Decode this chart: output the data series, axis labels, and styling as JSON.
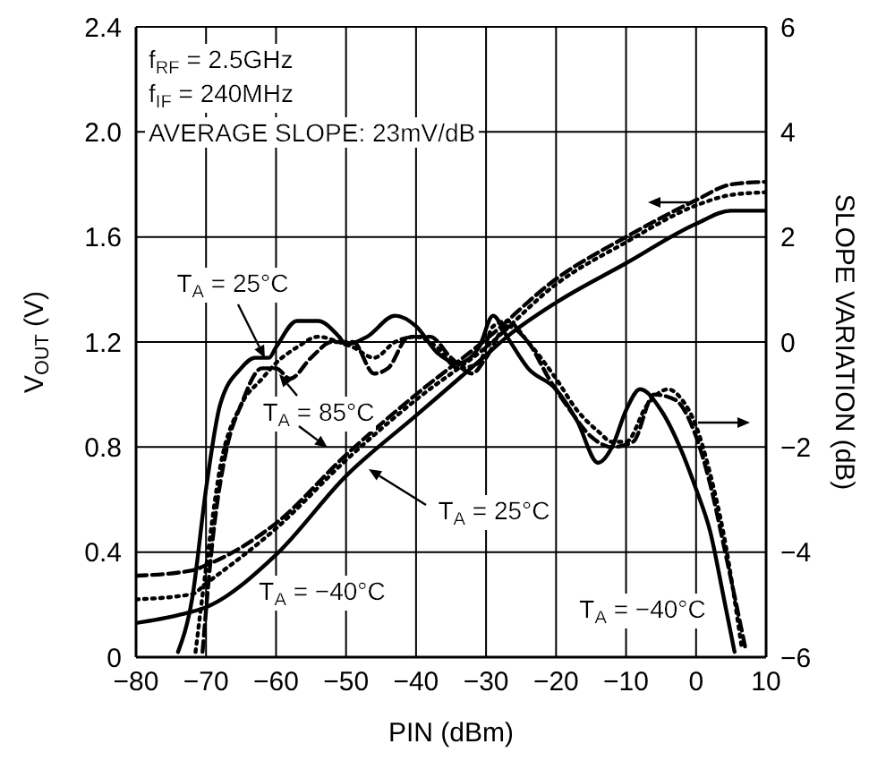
{
  "chart_data": {
    "type": "line",
    "xlabel": "PIN (dBm)",
    "ylabel": "V$_{OUT}$ (V)",
    "y2label": "SLOPE VARIATION (dB)",
    "annotations": [
      "f$_{RF}$ = 2.5GHz",
      "f$_{IF}$ = 240MHz",
      "AVERAGE SLOPE: 23mV/dB",
      "T$_{A}$ = 25°C",
      "T$_{A}$ = 85°C",
      "T$_{A}$ = 25°C",
      "T$_{A}$ = −40°C",
      "T$_{A}$ = −40°C"
    ],
    "xlim": [
      -80,
      10
    ],
    "xticks": [
      {
        "value": -80,
        "label": "−80"
      },
      {
        "value": -70,
        "label": "−70"
      },
      {
        "value": -60,
        "label": "−60"
      },
      {
        "value": -50,
        "label": "−50"
      },
      {
        "value": -40,
        "label": "−40"
      },
      {
        "value": -30,
        "label": "−30"
      },
      {
        "value": -20,
        "label": "−20"
      },
      {
        "value": -10,
        "label": "−10"
      },
      0,
      10
    ],
    "ylim": [
      0,
      2.4
    ],
    "yticks": [
      0,
      0.4,
      0.8,
      1.2,
      1.6,
      {
        "value": 2,
        "label": "2.0"
      },
      2.4
    ],
    "y2lim": [
      -6,
      6
    ],
    "y2ticks": [
      {
        "value": -6,
        "label": "−6"
      },
      {
        "value": -4,
        "label": "−4"
      },
      {
        "value": -2,
        "label": "−2"
      },
      0,
      2,
      4,
      6
    ],
    "grid": true,
    "series": [
      {
        "color": "#000000",
        "line_style": "solid",
        "x": [
          -80,
          -74,
          -70,
          -60,
          -50,
          -40,
          -30,
          -27,
          -20,
          -10,
          0,
          5,
          10
        ],
        "values": [
          0.13,
          0.16,
          0.19,
          0.39,
          0.69,
          0.92,
          1.15,
          1.22,
          1.35,
          1.5,
          1.65,
          1.7,
          1.7
        ]
      },
      {
        "color": "#000000",
        "line_style": "dotted",
        "x": [
          -80,
          -72,
          -70,
          -60,
          -50,
          -40,
          -30,
          -20,
          -10,
          0,
          5,
          10
        ],
        "values": [
          0.22,
          0.24,
          0.28,
          0.49,
          0.75,
          0.98,
          1.18,
          1.42,
          1.58,
          1.72,
          1.76,
          1.77
        ]
      },
      {
        "color": "#000000",
        "line_style": "dashed",
        "x": [
          -80,
          -72,
          -70,
          -60,
          -50,
          -40,
          -30,
          -20,
          -10,
          0,
          5,
          10
        ],
        "values": [
          0.31,
          0.33,
          0.35,
          0.51,
          0.77,
          1.0,
          1.21,
          1.44,
          1.6,
          1.74,
          1.8,
          1.81
        ]
      },
      {
        "color": "#000000",
        "line_style": "solid",
        "axis": "y2",
        "x": [
          -74,
          -72,
          -70,
          -68,
          -65,
          -63,
          -61,
          -60,
          -57,
          -54,
          -51,
          -50,
          -47,
          -43,
          -40,
          -37,
          -34,
          -31,
          -29,
          -27,
          -24,
          -20,
          -17,
          -14,
          -12,
          -10,
          -8,
          -5,
          -2,
          0,
          2,
          4,
          5.5
        ],
        "values": [
          -5.9,
          -4.9,
          -2.8,
          -1.2,
          -0.5,
          -0.3,
          -0.3,
          -0.1,
          0.4,
          0.4,
          0.1,
          -0.05,
          0.1,
          0.5,
          0.3,
          -0.2,
          -0.4,
          -0.1,
          0.5,
          0.1,
          -0.5,
          -0.9,
          -1.5,
          -2.3,
          -2,
          -1.3,
          -0.9,
          -1.3,
          -2.1,
          -2.8,
          -3.6,
          -4.9,
          -5.9
        ]
      },
      {
        "color": "#000000",
        "line_style": "dotted",
        "axis": "y2",
        "x": [
          -71.5,
          -70,
          -68,
          -65,
          -62,
          -60,
          -57,
          -54,
          -51,
          -49,
          -46,
          -43,
          -40,
          -37,
          -34,
          -31,
          -29,
          -27,
          -24,
          -20,
          -17,
          -14,
          -12,
          -10,
          -7,
          -4,
          -2,
          0,
          2,
          4,
          6.5
        ],
        "values": [
          -5.9,
          -4.3,
          -2.4,
          -1.2,
          -0.7,
          -0.4,
          -0.1,
          0.1,
          0,
          -0.1,
          -0.3,
          0,
          0.1,
          -0.1,
          -0.5,
          -0.4,
          0.3,
          0.4,
          0,
          -0.7,
          -1.3,
          -1.7,
          -1.9,
          -1.9,
          -1.2,
          -0.9,
          -1.1,
          -1.6,
          -2.5,
          -3.7,
          -5.8
        ]
      },
      {
        "color": "#000000",
        "line_style": "dashed",
        "axis": "y2",
        "x": [
          -70.5,
          -69,
          -67,
          -65,
          -62,
          -60,
          -58,
          -55,
          -52,
          -49,
          -46,
          -44,
          -41,
          -38,
          -35,
          -32,
          -30,
          -27,
          -24,
          -21,
          -18,
          -15,
          -12,
          -9,
          -6,
          -3,
          0,
          2,
          4,
          7
        ],
        "values": [
          -5.9,
          -3.7,
          -2,
          -1.2,
          -0.5,
          -0.5,
          -0.7,
          -0.3,
          0,
          0,
          -0.6,
          -0.5,
          0.1,
          0.1,
          -0.3,
          -0.6,
          -0.3,
          0.3,
          0,
          -0.7,
          -1.3,
          -1.8,
          -2,
          -1.9,
          -1,
          -1.1,
          -1.8,
          -2.7,
          -3.9,
          -5.8
        ]
      }
    ]
  }
}
